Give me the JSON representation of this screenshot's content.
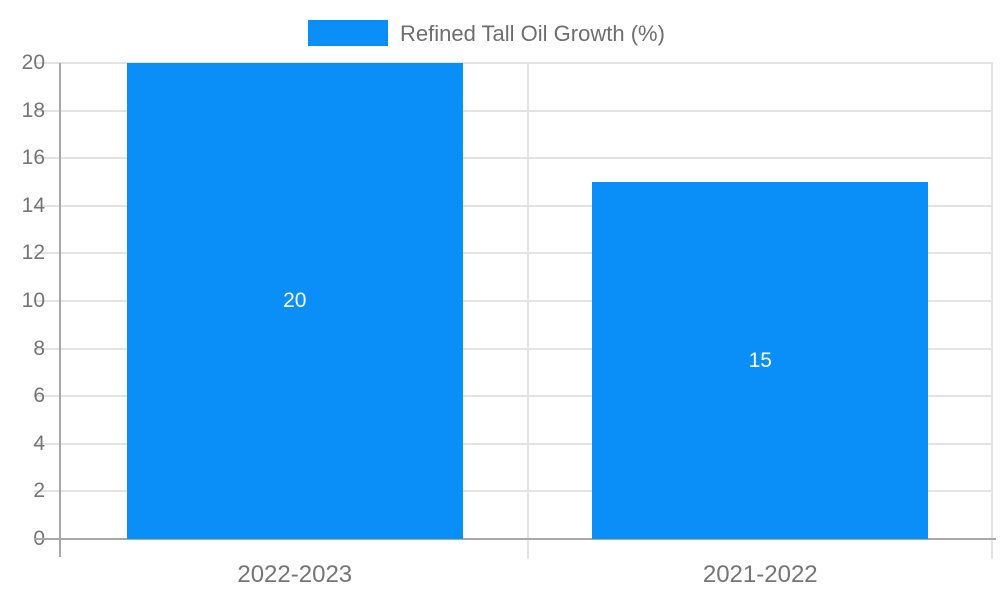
{
  "chart_data": {
    "type": "bar",
    "title": "",
    "categories": [
      "2022-2023",
      "2021-2022"
    ],
    "values": [
      20,
      15
    ],
    "value_labels": [
      "20",
      "15"
    ],
    "series_name": "Refined Tall Oil Growth (%)",
    "xlabel": "",
    "ylabel": "",
    "ylim": [
      0,
      20
    ],
    "ytick_step": 2,
    "yticks": [
      "0",
      "2",
      "4",
      "6",
      "8",
      "10",
      "12",
      "14",
      "16",
      "18",
      "20"
    ],
    "grid": true,
    "legend_position": "top-center"
  },
  "legend": {
    "label": "Refined Tall Oil Growth (%)"
  },
  "colors": {
    "bar": "#0a8ff8",
    "background": "#ffffff",
    "gridline": "#e3e3e3",
    "axis_line": "#a8a8a8",
    "tick_text": "#757575",
    "legend_text": "#6e6e6e",
    "bar_label_text": "#ffffff"
  }
}
